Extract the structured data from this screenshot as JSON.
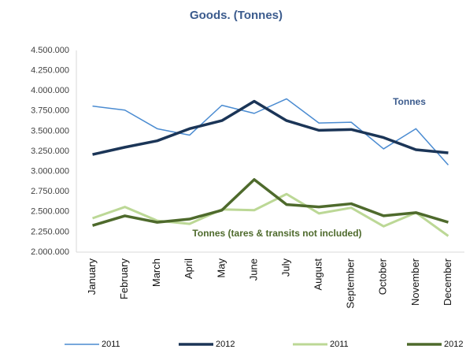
{
  "chart_data": {
    "type": "line",
    "title": "Goods. (Tonnes)",
    "categories": [
      "January",
      "February",
      "March",
      "April",
      "May",
      "June",
      "July",
      "August",
      "September",
      "October",
      "November",
      "December"
    ],
    "series": [
      {
        "name": "2011",
        "color": "#4a8bd1",
        "width": 1.5,
        "values": [
          3810000,
          3760000,
          3530000,
          3450000,
          3820000,
          3720000,
          3900000,
          3600000,
          3610000,
          3280000,
          3530000,
          3080000
        ]
      },
      {
        "name": "2012",
        "color": "#1b3557",
        "width": 3.5,
        "values": [
          3210000,
          3300000,
          3380000,
          3530000,
          3630000,
          3870000,
          3630000,
          3510000,
          3520000,
          3420000,
          3270000,
          3230000
        ]
      },
      {
        "name": "2011",
        "color": "#bcd896",
        "width": 3,
        "values": [
          2420000,
          2560000,
          2390000,
          2350000,
          2530000,
          2520000,
          2720000,
          2480000,
          2550000,
          2320000,
          2490000,
          2200000
        ]
      },
      {
        "name": "2012",
        "color": "#4e6a2c",
        "width": 3.5,
        "values": [
          2330000,
          2450000,
          2370000,
          2410000,
          2520000,
          2900000,
          2590000,
          2560000,
          2600000,
          2450000,
          2490000,
          2370000
        ]
      }
    ],
    "annotations": [
      {
        "text": "Tonnes",
        "color": "#3b5b8d"
      },
      {
        "text": "Tonnes  (tares & transits not included)",
        "color": "#4e6a2c"
      }
    ],
    "ylim": [
      2000000,
      4500000
    ],
    "yticks": [
      {
        "value": 2000000,
        "label": "2.000.000"
      },
      {
        "value": 2250000,
        "label": "2.250.000"
      },
      {
        "value": 2500000,
        "label": "2.500.000"
      },
      {
        "value": 2750000,
        "label": "2.750.000"
      },
      {
        "value": 3000000,
        "label": "3.000.000"
      },
      {
        "value": 3250000,
        "label": "3.250.000"
      },
      {
        "value": 3500000,
        "label": "3.500.000"
      },
      {
        "value": 3750000,
        "label": "3.750.000"
      },
      {
        "value": 4000000,
        "label": "4.000.000"
      },
      {
        "value": 4250000,
        "label": "4.250.000"
      },
      {
        "value": 4500000,
        "label": "4.500.000"
      }
    ],
    "grid": false,
    "legend": "bottom"
  }
}
